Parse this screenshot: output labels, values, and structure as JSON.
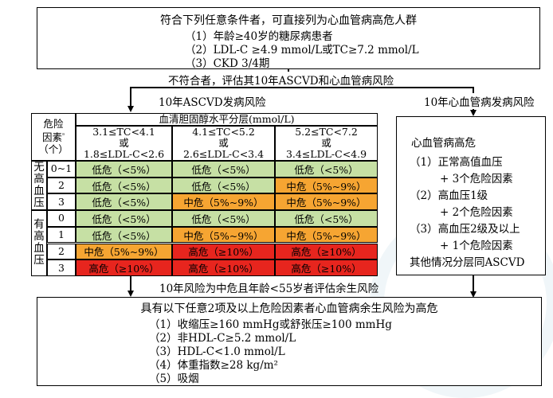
{
  "top_box": {
    "title": "符合下列任意条件者，可直接列为心血管病高危人群",
    "items": [
      "（1）年龄≥40岁的糖尿病患者",
      "（2）LDL-C ≥4.9 mmol/L或TC≥7.2 mmol/L",
      "（3）CKD 3/4期"
    ]
  },
  "not_meeting": "不符合者，评估其10年ASCVD和心血管病风险",
  "left_heading": "10年ASCVD发病风险",
  "right_heading": "10年心血管病发病风险",
  "table": {
    "risk_factor_header": [
      "危险",
      "因素",
      "ᵃ",
      "（个）"
    ],
    "cholesterol_header": "血清胆固醇水平分层(mmol/L)",
    "columns": [
      [
        "3.1≤TC<4.1",
        "或",
        "1.8≤LDL-C<2.6"
      ],
      [
        "4.1≤TC<5.2",
        "或",
        "2.6≤LDL-C<3.4"
      ],
      [
        "5.2≤TC<7.2",
        "或",
        "3.4≤LDL-C<4.9"
      ]
    ],
    "groups": [
      {
        "label": [
          "无",
          "高",
          "血",
          "压"
        ],
        "rows": [
          {
            "count": "0~1",
            "cells": [
              {
                "text": "低危（<5%）",
                "level": "low"
              },
              {
                "text": "低危（<5%）",
                "level": "low"
              },
              {
                "text": "低危（<5%）",
                "level": "low"
              }
            ]
          },
          {
            "count": "2",
            "cells": [
              {
                "text": "低危（<5%）",
                "level": "low"
              },
              {
                "text": "低危（<5%）",
                "level": "low"
              },
              {
                "text": "中危（5%~9%）",
                "level": "mid"
              }
            ]
          },
          {
            "count": "3",
            "cells": [
              {
                "text": "低危（<5%）",
                "level": "low"
              },
              {
                "text": "中危（5%~9%）",
                "level": "mid"
              },
              {
                "text": "中危（5%~9%）",
                "level": "mid"
              }
            ]
          }
        ]
      },
      {
        "label": [
          "有",
          "高",
          "血",
          "压"
        ],
        "rows": [
          {
            "count": "0",
            "cells": [
              {
                "text": "低危（<5%）",
                "level": "low"
              },
              {
                "text": "低危（<5%）",
                "level": "low"
              },
              {
                "text": "低危（<5%）",
                "level": "low"
              }
            ]
          },
          {
            "count": "1",
            "cells": [
              {
                "text": "低危（<5%）",
                "level": "low"
              },
              {
                "text": "中危（5%~9%）",
                "level": "mid"
              },
              {
                "text": "中危（5%~9%）",
                "level": "mid"
              }
            ]
          },
          {
            "count": "2",
            "cells": [
              {
                "text": "中危（5%~9%）",
                "level": "mid"
              },
              {
                "text": "高危（≥10%）",
                "level": "high"
              },
              {
                "text": "高危（≥10%）",
                "level": "high"
              }
            ]
          },
          {
            "count": "3",
            "cells": [
              {
                "text": "高危（≥10%）",
                "level": "high"
              },
              {
                "text": "高危（≥10%）",
                "level": "high"
              },
              {
                "text": "高危（≥10%）",
                "level": "high"
              }
            ]
          }
        ]
      }
    ]
  },
  "right_box": {
    "title": "心血管病高危",
    "lines": [
      "（1）正常高值血压",
      "+ 3个危险因素",
      "（2）高血压1级",
      "+ 2个危险因素",
      "（3）高血压2级及以上",
      "+ 1个危险因素",
      "其他情况分层同ASCVD"
    ]
  },
  "lifetime_note": "10年风险为中危且年龄<55岁者评估余生风险",
  "bottom_box": {
    "title": "具有以下任意2项及以上危险因素者心血管病余生风险为高危",
    "items": [
      "（1）收缩压≥160 mmHg或舒张压≥100 mmHg",
      "（2）非HDL-C≥5.2 mmol/L",
      "（3）HDL-C<1.0 mmol/L",
      "（4）体重指数≥28 kg/m²",
      "（5）吸烟"
    ]
  },
  "colors": {
    "low": "#c6e0a4",
    "mid": "#f6a532",
    "high": "#e7251e"
  }
}
